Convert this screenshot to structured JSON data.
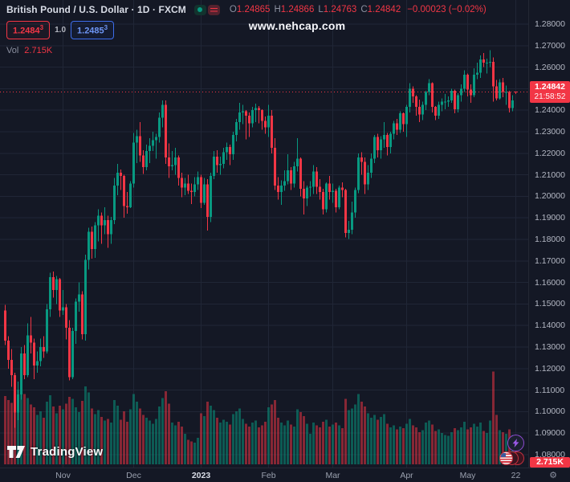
{
  "header": {
    "title": "British Pound / U.S. Dollar · 1D · FXCM",
    "ohlc": {
      "o_label": "O",
      "o": "1.24865",
      "h_label": "H",
      "h": "1.24866",
      "l_label": "L",
      "l": "1.24763",
      "c_label": "C",
      "c": "1.24842",
      "change": "−0.00023 (−0.02%)"
    },
    "bid": "1.2484",
    "bid_sup": "3",
    "spread": "1.0",
    "ask": "1.2485",
    "ask_sup": "3",
    "vol_label": "Vol",
    "vol_value": "2.715K"
  },
  "watermark": "www.nehcap.com",
  "logo": {
    "text": "TradingView"
  },
  "price_axis": {
    "current": {
      "price": "1.24842",
      "countdown": "21:58:52"
    },
    "volume_label": "2.715K"
  },
  "time_axis": {
    "gear": "⚙"
  },
  "colors": {
    "background": "#141825",
    "grid": "#202636",
    "up": "#089981",
    "down": "#f23645",
    "axis_text": "#b4b8c4",
    "accent_blue": "#2962ff"
  },
  "chart_data": {
    "type": "candlestick",
    "title": "British Pound / U.S. Dollar",
    "timeframe": "1D",
    "exchange": "FXCM",
    "ylim": [
      1.08,
      1.28
    ],
    "current_price": 1.24842,
    "current_countdown": "21:58:52",
    "current_volume_k": 2.715,
    "y_ticks": [
      "1.28000",
      "1.27000",
      "1.26000",
      "1.25000",
      "1.24000",
      "1.23000",
      "1.22000",
      "1.21000",
      "1.20000",
      "1.19000",
      "1.18000",
      "1.17000",
      "1.16000",
      "1.15000",
      "1.14000",
      "1.13000",
      "1.12000",
      "1.11000",
      "1.10000",
      "1.09000",
      "1.08000"
    ],
    "x_labels": [
      {
        "label": "Nov",
        "index": 18
      },
      {
        "label": "Dec",
        "index": 40
      },
      {
        "label": "2023",
        "index": 61,
        "year": true
      },
      {
        "label": "Feb",
        "index": 82
      },
      {
        "label": "Mar",
        "index": 102
      },
      {
        "label": "Apr",
        "index": 125
      },
      {
        "label": "May",
        "index": 144
      },
      {
        "label": "22",
        "index": 159
      }
    ],
    "columns": [
      "open",
      "high",
      "low",
      "close",
      "volume_k"
    ],
    "candles": [
      [
        1.147,
        1.1495,
        1.131,
        1.133,
        7.2
      ],
      [
        1.133,
        1.135,
        1.12,
        1.124,
        6.8
      ],
      [
        1.124,
        1.129,
        1.1115,
        1.117,
        6.5
      ],
      [
        1.117,
        1.118,
        1.0925,
        1.0995,
        8.4
      ],
      [
        1.0995,
        1.114,
        1.096,
        1.108,
        7.9
      ],
      [
        1.108,
        1.13,
        1.1055,
        1.127,
        8.8
      ],
      [
        1.127,
        1.131,
        1.115,
        1.117,
        7.4
      ],
      [
        1.117,
        1.141,
        1.116,
        1.1355,
        7.0
      ],
      [
        1.1355,
        1.144,
        1.127,
        1.132,
        6.3
      ],
      [
        1.132,
        1.134,
        1.115,
        1.1215,
        6.0
      ],
      [
        1.1215,
        1.128,
        1.118,
        1.1235,
        5.2
      ],
      [
        1.1235,
        1.134,
        1.121,
        1.13,
        5.6
      ],
      [
        1.13,
        1.135,
        1.125,
        1.128,
        4.9
      ],
      [
        1.128,
        1.15,
        1.127,
        1.1475,
        6.6
      ],
      [
        1.1475,
        1.1645,
        1.144,
        1.1625,
        7.3
      ],
      [
        1.1625,
        1.165,
        1.153,
        1.1565,
        6.1
      ],
      [
        1.1565,
        1.163,
        1.15,
        1.1615,
        5.4
      ],
      [
        1.1615,
        1.162,
        1.144,
        1.147,
        6.2
      ],
      [
        1.147,
        1.1565,
        1.145,
        1.1485,
        5.8
      ],
      [
        1.1485,
        1.15,
        1.1335,
        1.139,
        6.4
      ],
      [
        1.139,
        1.1425,
        1.1145,
        1.116,
        7.1
      ],
      [
        1.116,
        1.139,
        1.115,
        1.1375,
        6.9
      ],
      [
        1.1375,
        1.1525,
        1.1315,
        1.151,
        6.0
      ],
      [
        1.151,
        1.16,
        1.1465,
        1.1545,
        5.5
      ],
      [
        1.1545,
        1.156,
        1.1335,
        1.136,
        6.7
      ],
      [
        1.136,
        1.173,
        1.133,
        1.1705,
        8.2
      ],
      [
        1.1705,
        1.1855,
        1.166,
        1.1835,
        7.6
      ],
      [
        1.1835,
        1.186,
        1.171,
        1.1755,
        5.9
      ],
      [
        1.1755,
        1.188,
        1.1715,
        1.1865,
        5.3
      ],
      [
        1.1865,
        1.194,
        1.179,
        1.191,
        5.7
      ],
      [
        1.191,
        1.1925,
        1.178,
        1.1865,
        5.0
      ],
      [
        1.1865,
        1.195,
        1.1825,
        1.189,
        4.6
      ],
      [
        1.189,
        1.191,
        1.176,
        1.1825,
        4.8
      ],
      [
        1.1825,
        1.1905,
        1.178,
        1.189,
        4.4
      ],
      [
        1.189,
        1.2085,
        1.187,
        1.205,
        6.8
      ],
      [
        1.205,
        1.215,
        1.2005,
        1.211,
        6.2
      ],
      [
        1.211,
        1.2125,
        1.203,
        1.2095,
        4.7
      ],
      [
        1.2095,
        1.21,
        1.19,
        1.1955,
        5.6
      ],
      [
        1.1955,
        1.202,
        1.192,
        1.195,
        4.5
      ],
      [
        1.195,
        1.207,
        1.1945,
        1.206,
        5.8
      ],
      [
        1.206,
        1.2295,
        1.204,
        1.225,
        7.4
      ],
      [
        1.225,
        1.231,
        1.2155,
        1.228,
        6.6
      ],
      [
        1.228,
        1.2345,
        1.216,
        1.219,
        5.9
      ],
      [
        1.219,
        1.2215,
        1.2105,
        1.2135,
        5.2
      ],
      [
        1.2135,
        1.224,
        1.212,
        1.221,
        4.9
      ],
      [
        1.221,
        1.227,
        1.2155,
        1.2235,
        4.6
      ],
      [
        1.2235,
        1.23,
        1.221,
        1.226,
        4.3
      ],
      [
        1.226,
        1.229,
        1.2175,
        1.2275,
        4.8
      ],
      [
        1.2275,
        1.239,
        1.225,
        1.2365,
        6.1
      ],
      [
        1.2365,
        1.2446,
        1.232,
        1.2425,
        7.0
      ],
      [
        1.2425,
        1.2445,
        1.215,
        1.218,
        7.7
      ],
      [
        1.218,
        1.2245,
        1.2085,
        1.214,
        6.4
      ],
      [
        1.214,
        1.221,
        1.212,
        1.2145,
        4.4
      ],
      [
        1.2145,
        1.2225,
        1.21,
        1.218,
        4.1
      ],
      [
        1.218,
        1.219,
        1.205,
        1.2085,
        4.5
      ],
      [
        1.2085,
        1.211,
        1.1995,
        1.204,
        4.0
      ],
      [
        1.204,
        1.2085,
        1.2005,
        1.206,
        3.2
      ],
      [
        1.206,
        1.21,
        1.201,
        1.2025,
        2.6
      ],
      [
        1.2025,
        1.206,
        1.1965,
        1.202,
        2.4
      ],
      [
        1.202,
        1.209,
        1.2,
        1.2055,
        2.3
      ],
      [
        1.2055,
        1.2115,
        1.203,
        1.209,
        2.8
      ],
      [
        1.209,
        1.21,
        1.1945,
        1.197,
        5.4
      ],
      [
        1.197,
        1.2085,
        1.196,
        1.2055,
        5.1
      ],
      [
        1.2055,
        1.208,
        1.1841,
        1.1905,
        6.6
      ],
      [
        1.1905,
        1.211,
        1.188,
        1.2095,
        6.2
      ],
      [
        1.2095,
        1.221,
        1.208,
        1.2185,
        5.7
      ],
      [
        1.2185,
        1.2215,
        1.211,
        1.2145,
        4.9
      ],
      [
        1.2145,
        1.2185,
        1.21,
        1.215,
        4.4
      ],
      [
        1.215,
        1.2225,
        1.213,
        1.2205,
        4.7
      ],
      [
        1.2205,
        1.225,
        1.217,
        1.223,
        4.5
      ],
      [
        1.223,
        1.224,
        1.2145,
        1.2195,
        4.2
      ],
      [
        1.2195,
        1.23,
        1.217,
        1.2285,
        5.3
      ],
      [
        1.2285,
        1.236,
        1.2255,
        1.2345,
        5.6
      ],
      [
        1.2345,
        1.2435,
        1.231,
        1.239,
        5.9
      ],
      [
        1.239,
        1.2425,
        1.2335,
        1.2395,
        4.8
      ],
      [
        1.2395,
        1.24,
        1.2265,
        1.2375,
        4.3
      ],
      [
        1.2375,
        1.239,
        1.2275,
        1.234,
        4.0
      ],
      [
        1.234,
        1.2415,
        1.232,
        1.24,
        4.4
      ],
      [
        1.24,
        1.243,
        1.2345,
        1.241,
        4.6
      ],
      [
        1.241,
        1.242,
        1.234,
        1.24,
        3.9
      ],
      [
        1.24,
        1.2405,
        1.231,
        1.235,
        4.1
      ],
      [
        1.235,
        1.237,
        1.229,
        1.232,
        4.5
      ],
      [
        1.232,
        1.2425,
        1.2275,
        1.2375,
        6.0
      ],
      [
        1.2375,
        1.24,
        1.22,
        1.2225,
        6.3
      ],
      [
        1.2225,
        1.227,
        1.203,
        1.205,
        6.8
      ],
      [
        1.205,
        1.209,
        1.1985,
        1.202,
        4.9
      ],
      [
        1.202,
        1.2075,
        1.196,
        1.205,
        4.4
      ],
      [
        1.205,
        1.212,
        1.2025,
        1.207,
        4.1
      ],
      [
        1.207,
        1.2195,
        1.2055,
        1.212,
        4.6
      ],
      [
        1.212,
        1.2135,
        1.203,
        1.206,
        4.2
      ],
      [
        1.206,
        1.216,
        1.204,
        1.214,
        4.0
      ],
      [
        1.214,
        1.227,
        1.2115,
        1.2175,
        5.8
      ],
      [
        1.2175,
        1.218,
        1.2,
        1.2035,
        5.5
      ],
      [
        1.2035,
        1.207,
        1.1915,
        1.199,
        5.1
      ],
      [
        1.199,
        1.205,
        1.1955,
        1.204,
        4.3
      ],
      [
        1.204,
        1.207,
        1.2,
        1.2045,
        3.2
      ],
      [
        1.2045,
        1.2145,
        1.201,
        1.2115,
        4.4
      ],
      [
        1.2115,
        1.2135,
        1.201,
        1.2045,
        4.1
      ],
      [
        1.2045,
        1.208,
        1.1985,
        1.202,
        3.9
      ],
      [
        1.202,
        1.2035,
        1.1915,
        1.194,
        4.5
      ],
      [
        1.194,
        1.2065,
        1.1925,
        1.206,
        4.7
      ],
      [
        1.206,
        1.2095,
        1.1985,
        1.202,
        4.0
      ],
      [
        1.202,
        1.206,
        1.197,
        1.2025,
        4.2
      ],
      [
        1.2025,
        1.2035,
        1.1925,
        1.195,
        4.4
      ],
      [
        1.195,
        1.205,
        1.194,
        1.204,
        4.1
      ],
      [
        1.204,
        1.2065,
        1.1995,
        1.203,
        3.8
      ],
      [
        1.203,
        1.2035,
        1.181,
        1.183,
        6.9
      ],
      [
        1.183,
        1.1885,
        1.1802,
        1.1845,
        5.7
      ],
      [
        1.1845,
        1.1975,
        1.1825,
        1.1925,
        5.9
      ],
      [
        1.1925,
        1.204,
        1.19,
        1.203,
        6.3
      ],
      [
        1.203,
        1.22,
        1.2015,
        1.218,
        7.4
      ],
      [
        1.218,
        1.2205,
        1.21,
        1.216,
        6.6
      ],
      [
        1.216,
        1.218,
        1.201,
        1.2055,
        6.1
      ],
      [
        1.2055,
        1.2145,
        1.203,
        1.211,
        5.4
      ],
      [
        1.211,
        1.22,
        1.2085,
        1.2175,
        4.9
      ],
      [
        1.2175,
        1.2285,
        1.2155,
        1.2275,
        5.2
      ],
      [
        1.2275,
        1.229,
        1.218,
        1.2215,
        4.7
      ],
      [
        1.2215,
        1.228,
        1.2175,
        1.2265,
        5.0
      ],
      [
        1.2265,
        1.2345,
        1.2225,
        1.2285,
        5.3
      ],
      [
        1.2285,
        1.2295,
        1.219,
        1.223,
        4.3
      ],
      [
        1.223,
        1.23,
        1.22,
        1.229,
        3.9
      ],
      [
        1.229,
        1.235,
        1.2265,
        1.234,
        4.1
      ],
      [
        1.234,
        1.236,
        1.2285,
        1.231,
        3.7
      ],
      [
        1.231,
        1.2395,
        1.2295,
        1.2385,
        4.0
      ],
      [
        1.2385,
        1.239,
        1.23,
        1.2335,
        3.8
      ],
      [
        1.2335,
        1.2425,
        1.2275,
        1.2415,
        4.3
      ],
      [
        1.2415,
        1.2525,
        1.239,
        1.25,
        4.8
      ],
      [
        1.25,
        1.251,
        1.2435,
        1.2465,
        4.1
      ],
      [
        1.2465,
        1.247,
        1.2375,
        1.2415,
        3.9
      ],
      [
        1.2415,
        1.245,
        1.2345,
        1.238,
        3.4
      ],
      [
        1.238,
        1.244,
        1.2355,
        1.2425,
        3.6
      ],
      [
        1.2425,
        1.249,
        1.24,
        1.2485,
        4.4
      ],
      [
        1.2485,
        1.2545,
        1.247,
        1.2525,
        4.6
      ],
      [
        1.2525,
        1.253,
        1.239,
        1.2415,
        4.2
      ],
      [
        1.2415,
        1.242,
        1.2355,
        1.2375,
        3.5
      ],
      [
        1.2375,
        1.244,
        1.236,
        1.2425,
        3.7
      ],
      [
        1.2425,
        1.2455,
        1.2395,
        1.244,
        3.3
      ],
      [
        1.244,
        1.2475,
        1.2405,
        1.244,
        3.1
      ],
      [
        1.244,
        1.2465,
        1.2415,
        1.2445,
        3.0
      ],
      [
        1.2445,
        1.25,
        1.2435,
        1.249,
        3.4
      ],
      [
        1.249,
        1.2495,
        1.2385,
        1.2405,
        3.8
      ],
      [
        1.2405,
        1.248,
        1.239,
        1.247,
        3.6
      ],
      [
        1.247,
        1.252,
        1.244,
        1.25,
        3.9
      ],
      [
        1.25,
        1.2585,
        1.2485,
        1.2565,
        4.5
      ],
      [
        1.2565,
        1.257,
        1.2465,
        1.2495,
        3.7
      ],
      [
        1.2495,
        1.252,
        1.2435,
        1.247,
        3.9
      ],
      [
        1.247,
        1.2595,
        1.246,
        1.2565,
        4.3
      ],
      [
        1.2565,
        1.262,
        1.2545,
        1.2575,
        4.0
      ],
      [
        1.2575,
        1.2655,
        1.255,
        1.2635,
        4.4
      ],
      [
        1.2635,
        1.2665,
        1.26,
        1.262,
        3.5
      ],
      [
        1.262,
        1.264,
        1.257,
        1.262,
        3.3
      ],
      [
        1.262,
        1.2679,
        1.26,
        1.2625,
        4.6
      ],
      [
        1.2625,
        1.2645,
        1.244,
        1.251,
        9.8
      ],
      [
        1.251,
        1.254,
        1.2445,
        1.2455,
        5.2
      ],
      [
        1.2455,
        1.2545,
        1.245,
        1.253,
        3.6
      ],
      [
        1.253,
        1.255,
        1.246,
        1.2485,
        3.4
      ],
      [
        1.2485,
        1.2515,
        1.2425,
        1.2485,
        3.2
      ],
      [
        1.2485,
        1.249,
        1.239,
        1.241,
        3.7
      ],
      [
        1.241,
        1.247,
        1.2395,
        1.2445,
        3.1
      ],
      [
        1.24865,
        1.24866,
        1.24763,
        1.24842,
        2.715
      ]
    ]
  }
}
